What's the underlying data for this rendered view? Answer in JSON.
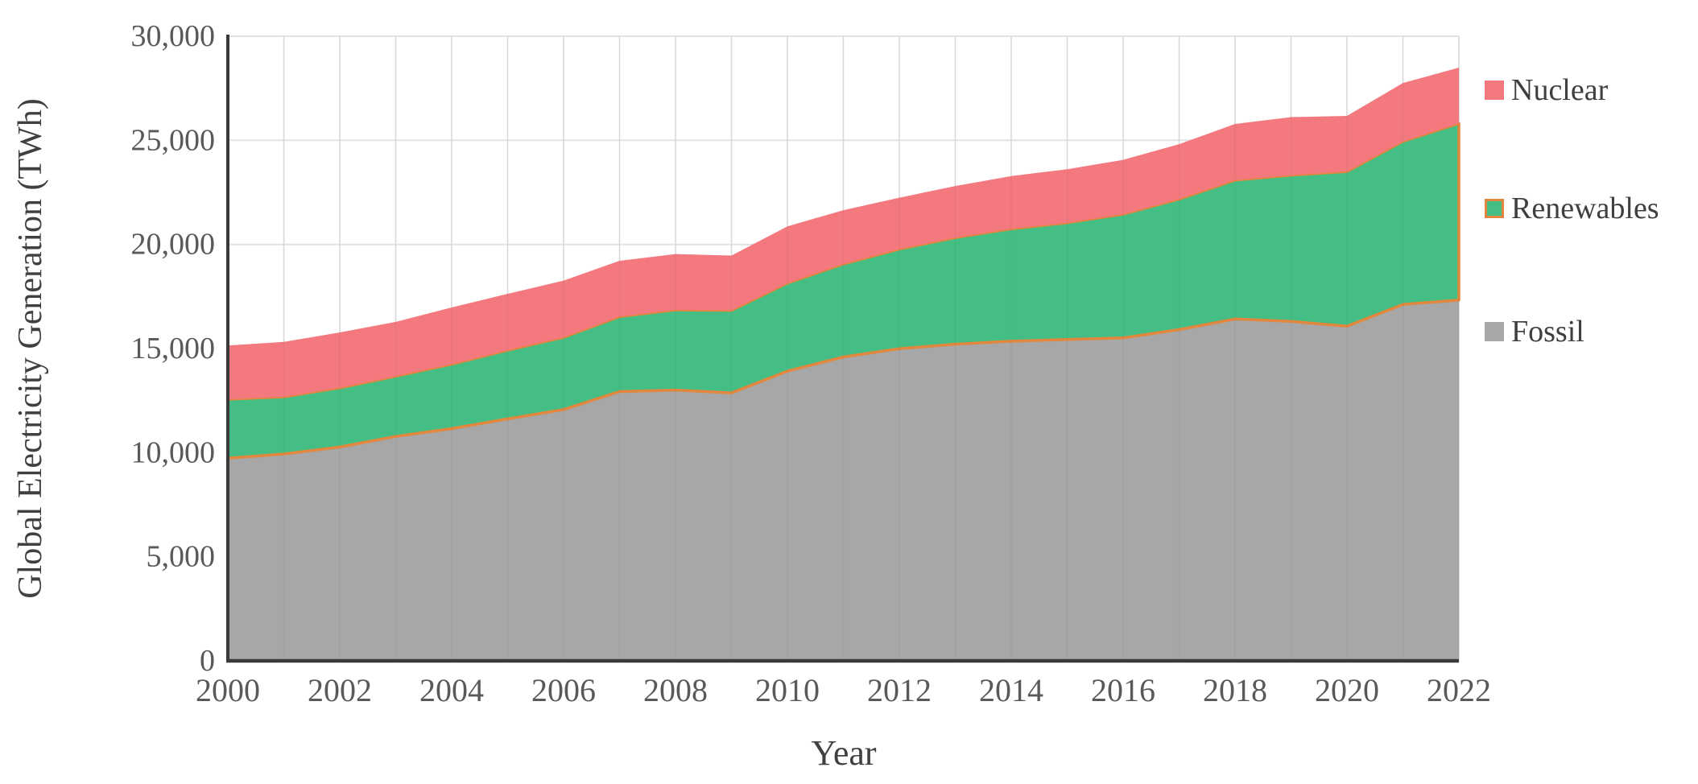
{
  "chart_data": {
    "type": "area",
    "stacked": true,
    "title": "",
    "xlabel": "Year",
    "ylabel": "Global Electricity Generation (TWh)",
    "x": [
      2000,
      2001,
      2002,
      2003,
      2004,
      2005,
      2006,
      2007,
      2008,
      2009,
      2010,
      2011,
      2012,
      2013,
      2014,
      2015,
      2016,
      2017,
      2018,
      2019,
      2020,
      2021,
      2022
    ],
    "series": [
      {
        "name": "Fossil",
        "color": "#A7A7A7",
        "border": null,
        "values": [
          9732,
          9936,
          10269,
          10778,
          11152,
          11621,
          12071,
          12930,
          13005,
          12870,
          13915,
          14595,
          14992,
          15208,
          15353,
          15434,
          15510,
          15909,
          16418,
          16306,
          16069,
          17115,
          17327
        ]
      },
      {
        "name": "Renewables",
        "color": "#45BE85",
        "border": "#E2873D",
        "values": [
          2833,
          2743,
          2845,
          2894,
          3099,
          3296,
          3469,
          3603,
          3852,
          3961,
          4227,
          4469,
          4788,
          5119,
          5396,
          5608,
          5941,
          6269,
          6668,
          7020,
          7432,
          7837,
          8487
        ]
      },
      {
        "name": "Nuclear",
        "color": "#F4797F",
        "border": null,
        "values": [
          2581,
          2637,
          2660,
          2608,
          2722,
          2710,
          2723,
          2680,
          2683,
          2633,
          2725,
          2583,
          2463,
          2477,
          2534,
          2570,
          2610,
          2638,
          2700,
          2789,
          2673,
          2800,
          2679
        ]
      }
    ],
    "ylim": [
      0,
      30000
    ],
    "yticks": [
      0,
      5000,
      10000,
      15000,
      20000,
      25000,
      30000
    ],
    "ytick_labels": [
      "0",
      "5,000",
      "10,000",
      "15,000",
      "20,000",
      "25,000",
      "30,000"
    ],
    "xticks": [
      2000,
      2002,
      2004,
      2006,
      2008,
      2010,
      2012,
      2014,
      2016,
      2018,
      2020,
      2022
    ],
    "xtick_labels": [
      "2000",
      "2002",
      "2004",
      "2006",
      "2008",
      "2010",
      "2012",
      "2014",
      "2016",
      "2018",
      "2020",
      "2022"
    ],
    "grid": true,
    "legend_position": "right",
    "legend_order": [
      "Nuclear",
      "Renewables",
      "Fossil"
    ],
    "colors": {
      "gridline": "#E2E2E2",
      "axis": "#3A3A3A",
      "tick_label": "#595959",
      "axis_title": "#404040",
      "legend_text": "#3F3F3F",
      "background": "#FFFFFF"
    }
  }
}
